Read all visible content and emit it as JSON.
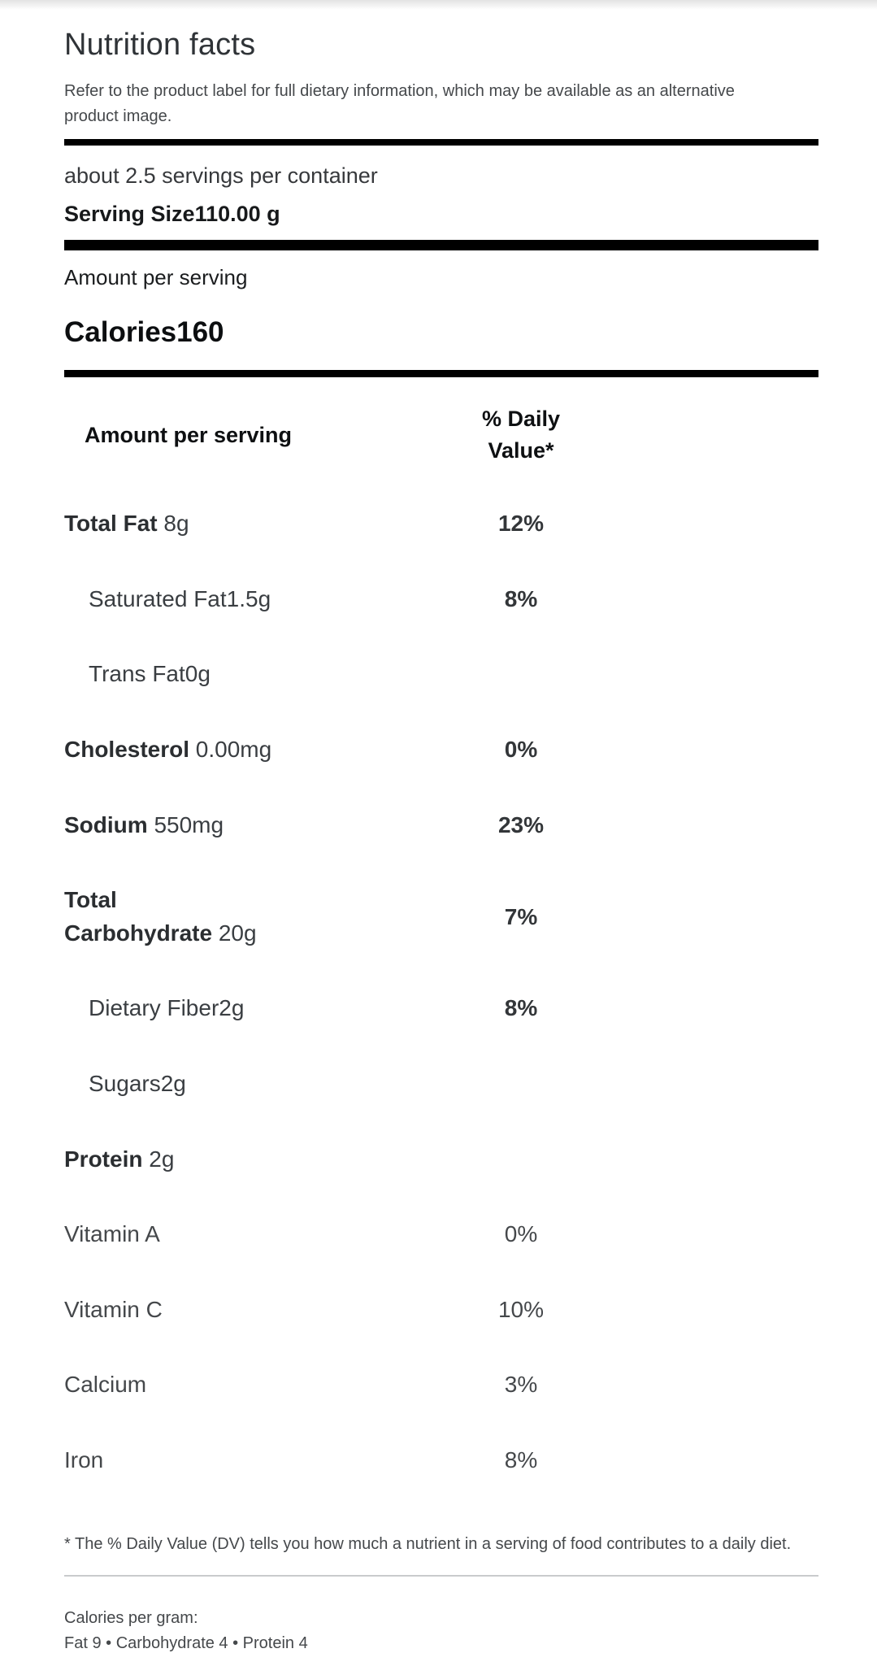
{
  "header": {
    "title": "Nutrition facts",
    "disclaimer": "Refer to the product label for full dietary information, which may be available as an alternative product image."
  },
  "serving": {
    "servings_per_container": "about 2.5 servings per container",
    "serving_size_label": "Serving Size",
    "serving_size_value": "110.00 g"
  },
  "calories": {
    "amount_per_serving_label": "Amount per serving",
    "label": "Calories",
    "value": "160"
  },
  "table": {
    "header": {
      "amount": "Amount per serving",
      "daily_value": "% Daily Value*"
    },
    "rows": [
      {
        "name": "Total Fat",
        "amount": " 8g",
        "dv": "12%",
        "style": "primary"
      },
      {
        "name": "Saturated Fat",
        "amount": "1.5g",
        "dv": "8%",
        "style": "sub"
      },
      {
        "name": "Trans Fat",
        "amount": "0g",
        "dv": "",
        "style": "sub"
      },
      {
        "name": "Cholesterol",
        "amount": " 0.00mg",
        "dv": "0%",
        "style": "primary"
      },
      {
        "name": "Sodium",
        "amount": " 550mg",
        "dv": "23%",
        "style": "primary"
      },
      {
        "name": "Total Carbohydrate",
        "amount": " 20g",
        "dv": "7%",
        "style": "primary"
      },
      {
        "name": "Dietary Fiber",
        "amount": "2g",
        "dv": "8%",
        "style": "sub"
      },
      {
        "name": "Sugars",
        "amount": "2g",
        "dv": "",
        "style": "sub"
      },
      {
        "name": "Protein",
        "amount": " 2g",
        "dv": "",
        "style": "primary"
      },
      {
        "name": "Vitamin A",
        "amount": "",
        "dv": "0%",
        "style": "vitamin"
      },
      {
        "name": "Vitamin C",
        "amount": "",
        "dv": "10%",
        "style": "vitamin"
      },
      {
        "name": "Calcium",
        "amount": "",
        "dv": "3%",
        "style": "vitamin"
      },
      {
        "name": "Iron",
        "amount": "",
        "dv": "8%",
        "style": "vitamin"
      }
    ]
  },
  "footnote": "* The % Daily Value (DV) tells you how much a nutrient in a serving of food contributes to a daily diet.",
  "calories_per_gram": {
    "label": "Calories per gram:",
    "values": "Fat 9 • Carbohydrate 4 • Protein 4"
  },
  "colors": {
    "bar": "#000000",
    "title_text": "#2f3337",
    "body_text": "#3a3e42",
    "header_text": "#0e1012",
    "divider": "#c9cbcd"
  }
}
